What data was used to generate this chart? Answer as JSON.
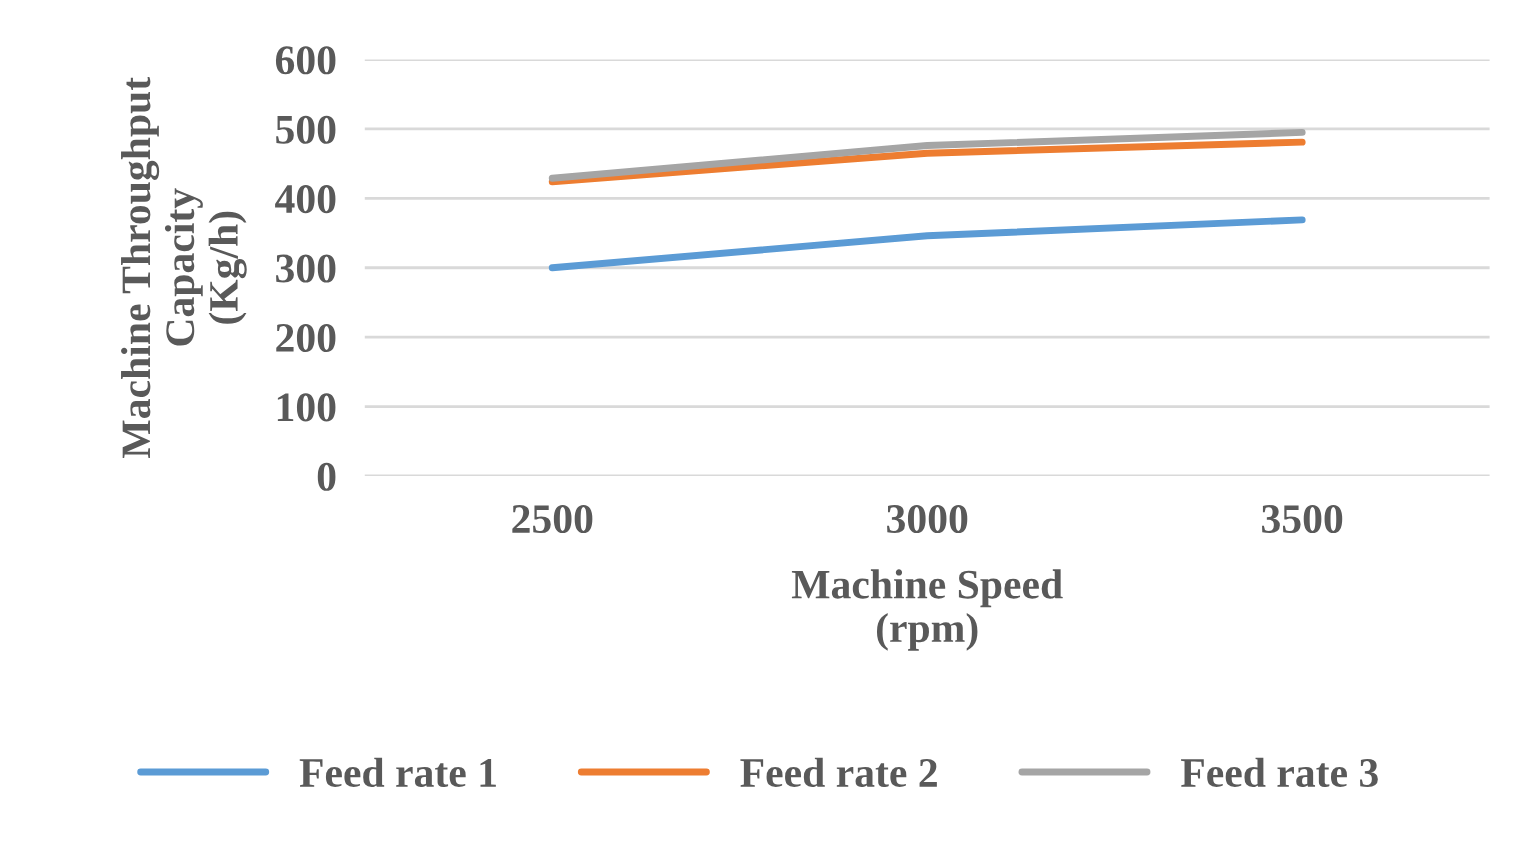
{
  "chart_data": {
    "type": "line",
    "xlabel": "Machine Speed\n(rpm)",
    "ylabel": "Machine Throughput\nCapacity\n(Kg/h)",
    "categories": [
      "2500",
      "3000",
      "3500"
    ],
    "series": [
      {
        "name": "Feed rate 1",
        "color": "#5b9bd5",
        "values": [
          300,
          346,
          369
        ]
      },
      {
        "name": "Feed rate 2",
        "color": "#ed7d31",
        "values": [
          424,
          465,
          481
        ]
      },
      {
        "name": "Feed rate 3",
        "color": "#a5a5a5",
        "values": [
          429,
          476,
          495
        ]
      }
    ],
    "ylim": [
      0,
      600
    ],
    "yticks": [
      0,
      100,
      200,
      300,
      400,
      500,
      600
    ],
    "grid": "y",
    "legend": "bottom",
    "marker": "none",
    "line_style": "solid"
  }
}
